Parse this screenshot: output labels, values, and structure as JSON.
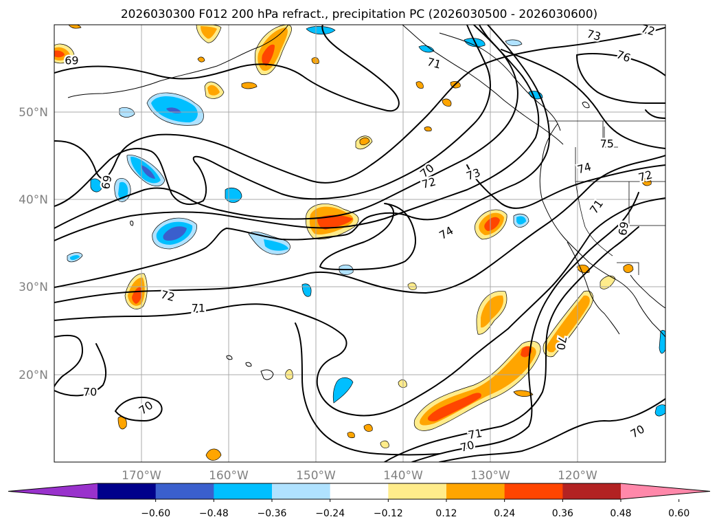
{
  "title": "2026030300 F012 200 hPa refract., precipitation PC (2026030500 - 2026030600)",
  "map": {
    "lat_range": [
      10,
      60
    ],
    "lon_range": [
      -180,
      -110
    ],
    "lat_labels": [
      {
        "lat": 50,
        "text": "50°N"
      },
      {
        "lat": 40,
        "text": "40°N"
      },
      {
        "lat": 30,
        "text": "30°N"
      },
      {
        "lat": 20,
        "text": "20°N"
      }
    ],
    "lon_labels": [
      {
        "lon": -170,
        "text": "170°W"
      },
      {
        "lon": -160,
        "text": "160°W"
      },
      {
        "lon": -150,
        "text": "150°W"
      },
      {
        "lon": -140,
        "text": "140°W"
      },
      {
        "lon": -130,
        "text": "130°W"
      },
      {
        "lon": -120,
        "text": "120°W"
      }
    ],
    "grid_color": "#a9a9a9"
  },
  "contour_labels": [
    {
      "text": "69",
      "lon": -178.0,
      "lat": 55.9,
      "rot": 0
    },
    {
      "text": "69",
      "lon": -174.0,
      "lat": 42.0,
      "rot": -80
    },
    {
      "text": "72",
      "lon": -167.0,
      "lat": 29.0,
      "rot": 15
    },
    {
      "text": "71",
      "lon": -163.5,
      "lat": 27.6,
      "rot": 0
    },
    {
      "text": "70",
      "lon": -175.9,
      "lat": 18.0,
      "rot": 0
    },
    {
      "text": "70",
      "lon": -169.5,
      "lat": 16.2,
      "rot": -35
    },
    {
      "text": "71",
      "lon": -136.5,
      "lat": 55.6,
      "rot": 15
    },
    {
      "text": "70",
      "lon": -137.3,
      "lat": 43.3,
      "rot": -40
    },
    {
      "text": "72",
      "lon": -137.1,
      "lat": 41.9,
      "rot": -15
    },
    {
      "text": "73",
      "lon": -132.0,
      "lat": 42.9,
      "rot": -20
    },
    {
      "text": "74",
      "lon": -135.1,
      "lat": 36.2,
      "rot": -30
    },
    {
      "text": "73",
      "lon": -118.2,
      "lat": 58.8,
      "rot": 15
    },
    {
      "text": "72",
      "lon": -112.0,
      "lat": 59.4,
      "rot": 15
    },
    {
      "text": "76",
      "lon": -114.8,
      "lat": 56.4,
      "rot": 20
    },
    {
      "text": "75",
      "lon": -116.7,
      "lat": 46.4,
      "rot": 0
    },
    {
      "text": "74",
      "lon": -119.3,
      "lat": 43.6,
      "rot": -15
    },
    {
      "text": "72",
      "lon": -112.3,
      "lat": 42.7,
      "rot": -15
    },
    {
      "text": "71",
      "lon": -117.9,
      "lat": 39.2,
      "rot": -55
    },
    {
      "text": "69",
      "lon": -114.8,
      "lat": 36.7,
      "rot": -80
    },
    {
      "text": "70",
      "lon": -121.9,
      "lat": 23.6,
      "rot": 100
    },
    {
      "text": "71",
      "lon": -131.8,
      "lat": 13.2,
      "rot": -10
    },
    {
      "text": "70",
      "lon": -132.7,
      "lat": 11.8,
      "rot": -15
    },
    {
      "text": "70",
      "lon": -113.2,
      "lat": 13.5,
      "rot": -30
    }
  ],
  "colorbar": {
    "levels": [
      -0.72,
      -0.6,
      -0.48,
      -0.36,
      -0.24,
      -0.12,
      0.12,
      0.24,
      0.36,
      0.48,
      0.6,
      0.72
    ],
    "colors": [
      "#9932cc",
      "#00008b",
      "#3a5fcd",
      "#00bfff",
      "#b0e2ff",
      "#ffffff",
      "#ffec8b",
      "#ffa500",
      "#ff4500",
      "#b22222",
      "#ff88aa"
    ],
    "tick_labels": [
      "−0.60",
      "−0.48",
      "−0.36",
      "−0.24",
      "−0.12",
      "0.12",
      "0.24",
      "0.36",
      "0.48",
      "0.60"
    ],
    "extend": "both"
  }
}
